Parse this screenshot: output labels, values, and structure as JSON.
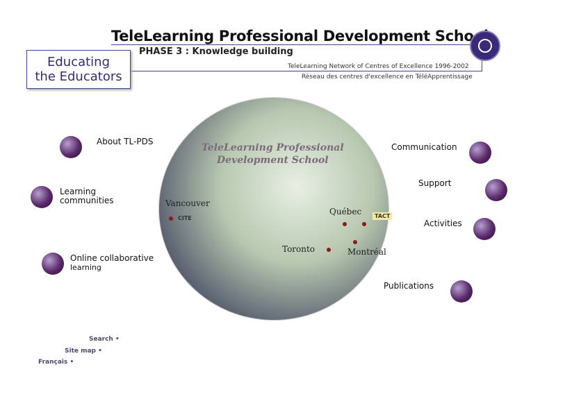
{
  "header": {
    "title": "TeleLearning Professional Development School",
    "phase": "PHASE 3 : Knowledge building",
    "network": "TeleLearning Network of Centres of Excellence 1996-2002",
    "network_fr": "Réseau des centres d'excellence en TéléApprentissage"
  },
  "badge": {
    "line1": "Educating",
    "line2": "the Educators"
  },
  "globe": {
    "line1": "TeleLearning Professional",
    "line2": "Development School",
    "cities": [
      "Vancouver",
      "Québec",
      "Toronto",
      "Montréal"
    ],
    "labels": [
      "CITE",
      "TACT"
    ]
  },
  "left_nav": [
    {
      "label": "About TL-PDS"
    },
    {
      "label1": "Learning",
      "label2": "communities"
    },
    {
      "label1": "Online collaborative",
      "label2": "learning"
    }
  ],
  "right_nav": [
    {
      "label": "Communication"
    },
    {
      "label": "Support"
    },
    {
      "label": "Activities"
    },
    {
      "label": "Publications"
    }
  ],
  "footer": {
    "search": "Search •",
    "sitemap": "Site map •",
    "francais": "Français •"
  },
  "colors": {
    "accent": "#3b2a78",
    "ball": "#5a2a6a"
  }
}
